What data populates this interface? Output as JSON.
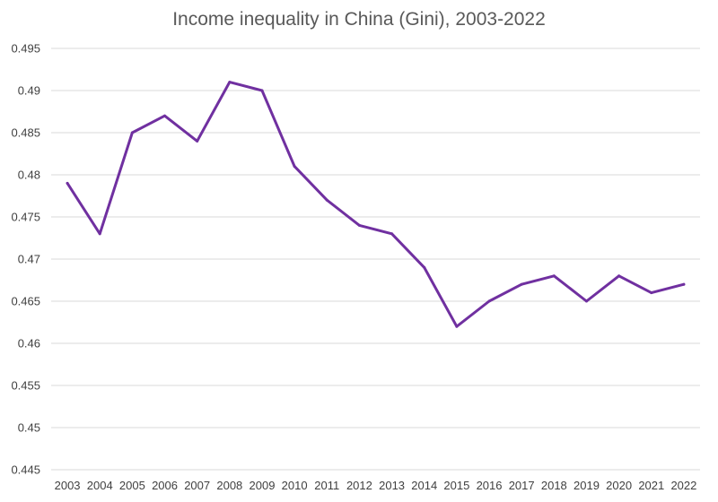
{
  "chart_data": {
    "type": "line",
    "title": "Income inequality in China (Gini), 2003-2022",
    "xlabel": "",
    "ylabel": "",
    "categories": [
      "2003",
      "2004",
      "2005",
      "2006",
      "2007",
      "2008",
      "2009",
      "2010",
      "2011",
      "2012",
      "2013",
      "2014",
      "2015",
      "2016",
      "2017",
      "2018",
      "2019",
      "2020",
      "2021",
      "2022"
    ],
    "series": [
      {
        "values": [
          0.479,
          0.473,
          0.485,
          0.487,
          0.484,
          0.491,
          0.49,
          0.481,
          0.477,
          0.474,
          0.473,
          0.469,
          0.462,
          0.465,
          0.467,
          0.468,
          0.465,
          0.468,
          0.466,
          0.467
        ],
        "color": "#7030a0"
      }
    ],
    "ylim": [
      0.445,
      0.495
    ],
    "yticks": [
      "0.445",
      "0.45",
      "0.455",
      "0.46",
      "0.465",
      "0.47",
      "0.475",
      "0.48",
      "0.485",
      "0.49",
      "0.495"
    ],
    "grid": true,
    "legend": "none",
    "colors": {
      "gridline": "#d9d9d9",
      "title": "#595959",
      "ticklabel": "#404040"
    }
  }
}
